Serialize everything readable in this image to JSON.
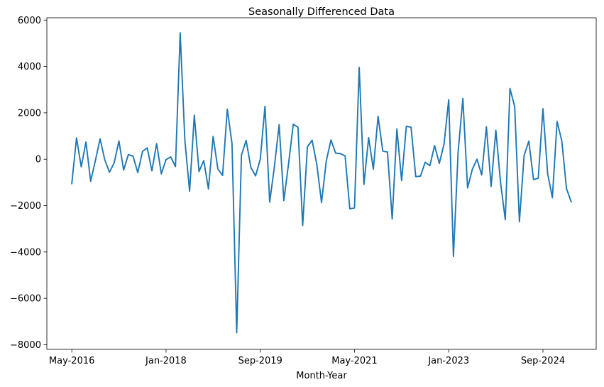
{
  "chart_data": {
    "type": "line",
    "title": "Seasonally Differenced Data",
    "xlabel": "Month-Year",
    "ylabel": "",
    "x_start": "May-2016",
    "x_tick_labels": [
      "May-2016",
      "Jan-2018",
      "Sep-2019",
      "May-2021",
      "Jan-2023",
      "Sep-2024"
    ],
    "y_ticks": [
      -8000,
      -6000,
      -4000,
      -2000,
      0,
      2000,
      4000,
      6000
    ],
    "y_tick_labels": [
      "−8000",
      "−6000",
      "−4000",
      "−2000",
      "0",
      "2000",
      "4000",
      "6000"
    ],
    "ylim": [
      -8200,
      6100
    ],
    "grid": false,
    "legend": "none",
    "series": [
      {
        "color": "#1f77b4",
        "values": [
          -1050,
          920,
          -330,
          740,
          -950,
          -60,
          880,
          -30,
          -560,
          -150,
          790,
          -470,
          200,
          130,
          -580,
          330,
          490,
          -500,
          670,
          -630,
          -20,
          100,
          -320,
          5450,
          800,
          -1380,
          1900,
          -530,
          -60,
          -1280,
          980,
          -420,
          -700,
          2160,
          680,
          -7480,
          170,
          810,
          -350,
          -720,
          0,
          2280,
          -1850,
          -320,
          1490,
          -1790,
          -200,
          1510,
          1380,
          -2860,
          530,
          820,
          -220,
          -1870,
          -90,
          830,
          260,
          240,
          150,
          -2140,
          -2100,
          3960,
          -1090,
          930,
          -430,
          1850,
          350,
          310,
          -2580,
          1310,
          -920,
          1420,
          1380,
          -750,
          -730,
          -130,
          -280,
          590,
          -180,
          650,
          2570,
          -4190,
          330,
          2620,
          -1240,
          -440,
          0,
          -680,
          1400,
          -1170,
          1250,
          -1000,
          -2610,
          3050,
          2270,
          -2700,
          160,
          780,
          -880,
          -820,
          2180,
          -630,
          -1660,
          1630,
          790,
          -1270,
          -1840
        ]
      }
    ]
  }
}
